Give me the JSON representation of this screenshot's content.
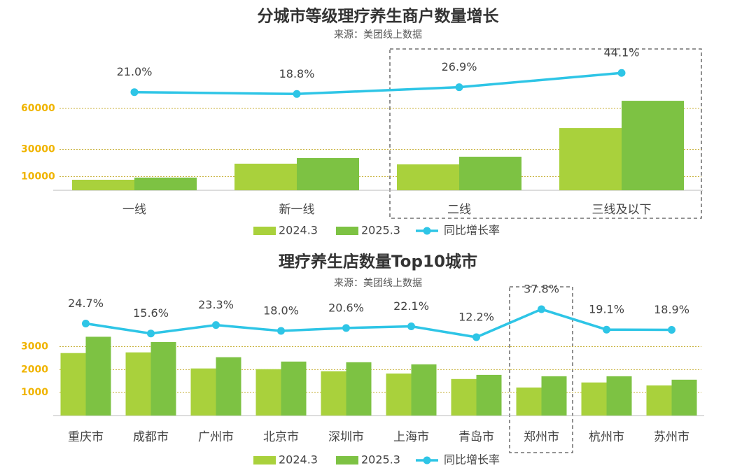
{
  "chart_data": [
    {
      "type": "bar",
      "title": "分城市等级理疗养生商户数量增长",
      "subtitle": "来源：美团线上数据",
      "categories": [
        "一线",
        "新一线",
        "二线",
        "三线及以下"
      ],
      "series": [
        {
          "name": "2024.3",
          "color": "#a9d13c",
          "values": [
            7700,
            19500,
            19000,
            45600
          ]
        },
        {
          "name": "2025.3",
          "color": "#7dc243",
          "values": [
            9300,
            23600,
            24600,
            65600
          ]
        },
        {
          "name": "同比增长率",
          "type": "line",
          "axis": "y2",
          "color": "#2ec5e6",
          "values": [
            21.0,
            18.8,
            26.9,
            44.1
          ],
          "value_labels": [
            "21.0%",
            "18.8%",
            "26.9%",
            "44.1%"
          ]
        }
      ],
      "ylim": [
        0,
        100000
      ],
      "yticks": [
        10000,
        30000,
        60000
      ],
      "y2lim": [
        -97,
        67
      ],
      "grid": true
    },
    {
      "type": "bar",
      "title": "理疗养生店数量Top10城市",
      "subtitle": "来源：美团线上数据",
      "categories": [
        "重庆市",
        "成都市",
        "广州市",
        "北京市",
        "深圳市",
        "上海市",
        "青岛市",
        "郑州市",
        "杭州市",
        "苏州市"
      ],
      "series": [
        {
          "name": "2024.3",
          "color": "#a9d13c",
          "values": [
            2720,
            2750,
            2050,
            2020,
            1930,
            1830,
            1590,
            1220,
            1440,
            1310
          ]
        },
        {
          "name": "2025.3",
          "color": "#7dc243",
          "values": [
            3430,
            3200,
            2540,
            2350,
            2320,
            2230,
            1770,
            1710,
            1710,
            1560
          ]
        },
        {
          "name": "同比增长率",
          "type": "line",
          "axis": "y2",
          "color": "#2ec5e6",
          "values": [
            24.7,
            15.6,
            23.3,
            18.0,
            20.6,
            22.1,
            12.2,
            37.8,
            19.1,
            18.9
          ],
          "value_labels": [
            "24.7%",
            "15.6%",
            "23.3%",
            "18.0%",
            "20.6%",
            "22.1%",
            "12.2%",
            "37.8%",
            "19.1%",
            "18.9%"
          ]
        }
      ],
      "ylim": [
        0,
        5300
      ],
      "yticks": [
        1000,
        2000,
        3000
      ],
      "y2lim": [
        -59.5,
        51.9
      ],
      "grid": true
    }
  ]
}
